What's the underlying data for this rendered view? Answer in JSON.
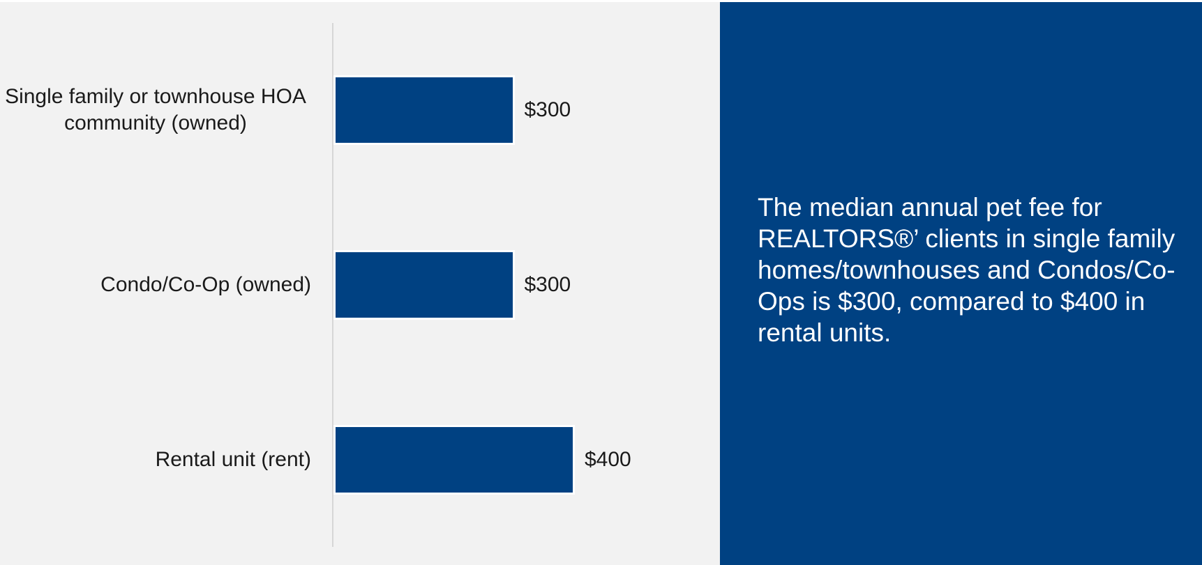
{
  "chart_data": {
    "type": "bar",
    "orientation": "horizontal",
    "categories": [
      "Single family or townhouse HOA community (owned)",
      "Condo/Co-Op (owned)",
      "Rental unit (rent)"
    ],
    "values": [
      300,
      300,
      400
    ],
    "value_labels": [
      "$300",
      "$300",
      "$400"
    ],
    "color": "#004182",
    "xlim": [
      0,
      600
    ]
  },
  "note": {
    "text": "The median annual pet fee for REALTORS®’ clients in single family homes/townhouses and Condos/Co-Ops is $300, compared to $400 in rental units."
  }
}
